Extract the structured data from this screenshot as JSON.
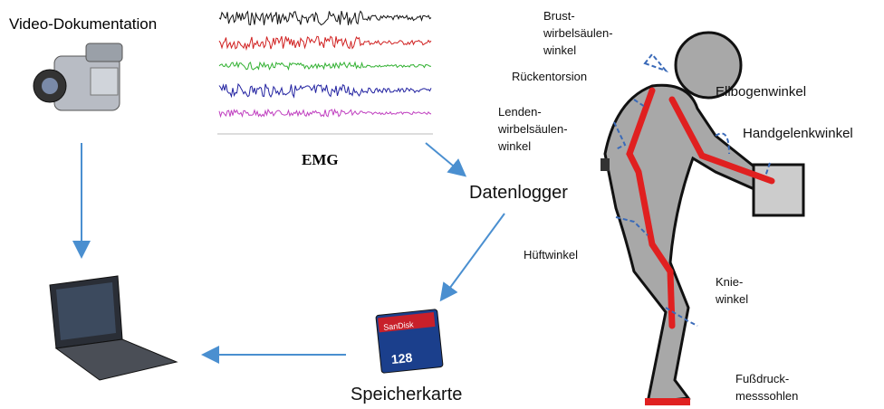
{
  "video": {
    "label": "Video-Dokumentation"
  },
  "emg": {
    "label": "EMG"
  },
  "logger": {
    "label": "Datenlogger"
  },
  "card": {
    "label": "Speicherkarte",
    "brand": "SanDisk",
    "capacity": "128"
  },
  "angles": [
    {
      "lines": [
        "Brust-",
        "wirbelsäulen-",
        "winkel"
      ]
    },
    {
      "lines": [
        "Rückentorsion"
      ]
    },
    {
      "lines": [
        "Lenden-",
        "wirbelsäulen-",
        "winkel"
      ]
    },
    {
      "lines": [
        "Ellbogenwinkel"
      ]
    },
    {
      "lines": [
        "Handgelenkwinkel"
      ]
    },
    {
      "lines": [
        "Hüftwinkel"
      ]
    },
    {
      "lines": [
        "Knie-",
        "winkel"
      ]
    },
    {
      "lines": [
        "Fußdruck-",
        "messsohlen"
      ]
    }
  ]
}
